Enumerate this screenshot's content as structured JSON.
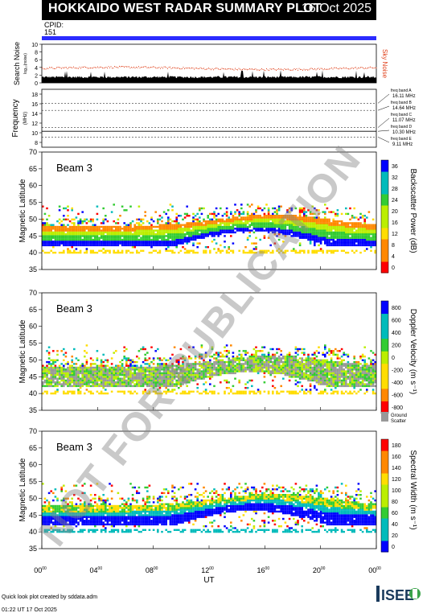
{
  "header": {
    "title": "HOKKAIDO WEST RADAR SUMMARY PLOT",
    "date": "16 Oct 2025"
  },
  "cpid": {
    "label": "CPID:",
    "value": "151"
  },
  "noise_panel": {
    "ylabel": "Search Noise",
    "ylabel_sub": "log₁₀(noise)",
    "right_label": "Sky Noise",
    "yticks": [
      "0",
      "2",
      "4",
      "6",
      "8",
      "10"
    ]
  },
  "freq_panel": {
    "ylabel": "Frequency",
    "unit": "(MHz)",
    "yticks": [
      "8",
      "10",
      "12",
      "14",
      "16",
      "18"
    ],
    "bands": [
      {
        "name": "freq band A",
        "value": "16.11 MHz"
      },
      {
        "name": "freq band B",
        "value": "14.64 MHz"
      },
      {
        "name": "freq band C",
        "value": "11.07 MHz"
      },
      {
        "name": "freq band D",
        "value": "10.30 MHz"
      },
      {
        "name": "freq band E",
        "value": "9.11 MHz"
      }
    ]
  },
  "chart_data": [
    {
      "type": "heatmap",
      "panel": "power",
      "beam_label": "Beam  3",
      "ylabel": "Magnetic Latitude",
      "ylim": [
        35,
        70
      ],
      "yticks": [
        "35",
        "40",
        "45",
        "50",
        "55",
        "60",
        "65",
        "70"
      ],
      "colorbar_label": "Backscatter Power (dB)",
      "colorbar_ticks": [
        "0",
        "4",
        "8",
        "12",
        "16",
        "20",
        "24",
        "28",
        "32",
        "36"
      ],
      "colorbar_colors": [
        "#ff0000",
        "#ff8800",
        "#ffdd00",
        "#bbee00",
        "#33cc33",
        "#00bbbb",
        "#0000ff"
      ]
    },
    {
      "type": "heatmap",
      "panel": "velocity",
      "beam_label": "Beam  3",
      "ylabel": "Magnetic Latitude",
      "ylim": [
        35,
        70
      ],
      "yticks": [
        "35",
        "40",
        "45",
        "50",
        "55",
        "60",
        "65",
        "70"
      ],
      "colorbar_label": "Doppler Velocity (m s⁻¹)",
      "colorbar_ticks": [
        "-800",
        "-600",
        "-400",
        "-200",
        "0",
        "200",
        "400",
        "600",
        "800"
      ],
      "colorbar_colors": [
        "#ff0000",
        "#ff8800",
        "#ffdd00",
        "#bbee00",
        "#33cc33",
        "#00bbbb",
        "#0000ff"
      ],
      "ground_scatter_label": [
        "Ground",
        "Scatter"
      ]
    },
    {
      "type": "heatmap",
      "panel": "width",
      "beam_label": "Beam  3",
      "ylabel": "Magnetic Latitude",
      "ylim": [
        35,
        70
      ],
      "yticks": [
        "35",
        "40",
        "45",
        "50",
        "55",
        "60",
        "65",
        "70"
      ],
      "colorbar_label": "Spectral Width (m s⁻¹)",
      "colorbar_ticks": [
        "0",
        "20",
        "40",
        "60",
        "80",
        "100",
        "120",
        "140",
        "160",
        "180"
      ],
      "colorbar_colors": [
        "#0000ff",
        "#00bbbb",
        "#33cc33",
        "#bbee00",
        "#ffdd00",
        "#ff8800",
        "#ff0000"
      ]
    }
  ],
  "x_axis": {
    "xlabel": "UT",
    "ticks": [
      {
        "h": "00",
        "m": "00"
      },
      {
        "h": "04",
        "m": "00"
      },
      {
        "h": "08",
        "m": "00"
      },
      {
        "h": "12",
        "m": "00"
      },
      {
        "h": "16",
        "m": "00"
      },
      {
        "h": "20",
        "m": "00"
      },
      {
        "h": "00",
        "m": "00"
      }
    ]
  },
  "watermark": "NOT FOR PUBLICATION",
  "footer": {
    "line1": "Quick look plot created by sddata.adm",
    "line2": "01:22 UT 17 Oct 2025"
  },
  "logo": {
    "text": "ISEE"
  }
}
